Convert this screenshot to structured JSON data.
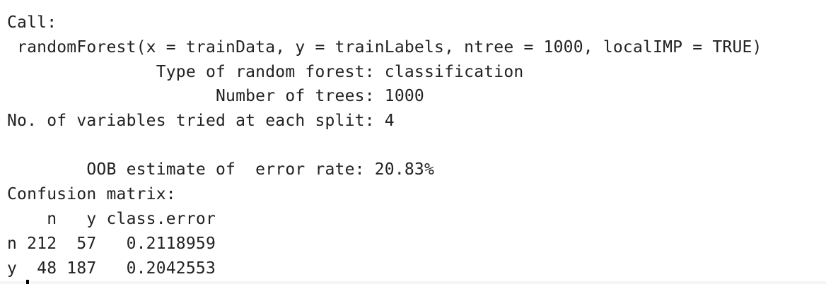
{
  "console": {
    "lines": [
      "Call:",
      " randomForest(x = trainData, y = trainLabels, ntree = 1000, localIMP = TRUE)",
      "               Type of random forest: classification",
      "                     Number of trees: 1000",
      "No. of variables tried at each split: 4",
      "",
      "        OOB estimate of  error rate: 20.83%",
      "Confusion matrix:",
      "    n   y class.error",
      "n 212  57   0.2118959",
      "y  48 187   0.2042553"
    ]
  }
}
